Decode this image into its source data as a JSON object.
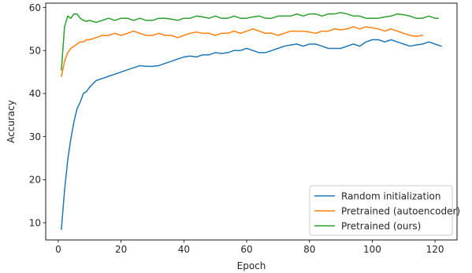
{
  "chart_data": {
    "type": "line",
    "title": "",
    "xlabel": "Epoch",
    "ylabel": "Accuracy",
    "xlim": [
      -4,
      127
    ],
    "ylim": [
      6,
      61
    ],
    "xticks": [
      0,
      20,
      40,
      60,
      80,
      100,
      120
    ],
    "yticks": [
      10,
      20,
      30,
      40,
      50,
      60
    ],
    "grid": false,
    "legend_position": "lower-right",
    "series": [
      {
        "name": "Random initialization",
        "color": "#1f77b4",
        "x": [
          1,
          2,
          3,
          4,
          5,
          6,
          7,
          8,
          9,
          10,
          12,
          14,
          16,
          18,
          20,
          22,
          24,
          26,
          28,
          30,
          32,
          34,
          36,
          38,
          40,
          42,
          44,
          46,
          48,
          50,
          52,
          54,
          56,
          58,
          60,
          62,
          64,
          66,
          68,
          70,
          72,
          74,
          76,
          78,
          80,
          82,
          84,
          86,
          88,
          90,
          92,
          94,
          96,
          98,
          100,
          102,
          104,
          106,
          108,
          110,
          112,
          114,
          116,
          118,
          120,
          122
        ],
        "y": [
          8.5,
          17.5,
          24.5,
          29.5,
          33.5,
          36.5,
          38.0,
          40.0,
          40.5,
          41.5,
          43.0,
          43.5,
          44.0,
          44.5,
          45.0,
          45.5,
          46.0,
          46.5,
          46.3,
          46.3,
          46.5,
          47.0,
          47.5,
          48.0,
          48.5,
          48.7,
          48.5,
          49.0,
          49.0,
          49.5,
          49.3,
          49.5,
          50.0,
          50.0,
          50.5,
          50.0,
          49.5,
          49.5,
          50.0,
          50.5,
          51.0,
          51.3,
          51.5,
          51.0,
          51.5,
          51.5,
          51.0,
          50.5,
          50.5,
          50.5,
          51.0,
          51.5,
          51.0,
          52.0,
          52.5,
          52.5,
          52.0,
          52.5,
          52.0,
          51.5,
          51.0,
          51.3,
          51.5,
          52.0,
          51.5,
          51.0
        ]
      },
      {
        "name": "Pretrained (autoencoder)",
        "color": "#ff7f0e",
        "x": [
          1,
          2,
          3,
          4,
          5,
          6,
          7,
          8,
          9,
          10,
          12,
          14,
          16,
          18,
          20,
          22,
          24,
          26,
          28,
          30,
          32,
          34,
          36,
          38,
          40,
          42,
          44,
          46,
          48,
          50,
          52,
          54,
          56,
          58,
          60,
          62,
          64,
          66,
          68,
          70,
          72,
          74,
          76,
          78,
          80,
          82,
          84,
          86,
          88,
          90,
          92,
          94,
          96,
          98,
          100,
          102,
          104,
          106,
          108,
          110,
          112,
          114,
          116
        ],
        "y": [
          44.0,
          47.5,
          49.5,
          50.5,
          51.0,
          51.5,
          52.0,
          52.0,
          52.5,
          52.5,
          53.0,
          53.5,
          53.5,
          54.0,
          53.5,
          54.0,
          54.5,
          54.0,
          53.5,
          53.5,
          54.0,
          53.5,
          53.5,
          53.0,
          53.5,
          54.0,
          54.3,
          54.0,
          54.0,
          53.5,
          54.0,
          54.0,
          54.5,
          54.0,
          54.5,
          55.0,
          54.5,
          54.0,
          54.0,
          53.5,
          54.0,
          54.5,
          54.5,
          54.5,
          54.3,
          54.0,
          54.5,
          54.5,
          55.0,
          54.8,
          55.0,
          55.5,
          55.0,
          55.5,
          55.3,
          55.0,
          54.5,
          55.0,
          54.5,
          54.0,
          53.5,
          53.3,
          53.5
        ]
      },
      {
        "name": "Pretrained (ours)",
        "color": "#2ca02c",
        "x": [
          1,
          2,
          3,
          4,
          5,
          6,
          7,
          8,
          9,
          10,
          12,
          14,
          16,
          18,
          20,
          22,
          24,
          26,
          28,
          30,
          32,
          34,
          36,
          38,
          40,
          42,
          44,
          46,
          48,
          50,
          52,
          54,
          56,
          58,
          60,
          62,
          64,
          66,
          68,
          70,
          72,
          74,
          76,
          78,
          80,
          82,
          84,
          86,
          88,
          90,
          92,
          94,
          96,
          98,
          100,
          102,
          104,
          106,
          108,
          110,
          112,
          114,
          116,
          118,
          120,
          121
        ],
        "y": [
          45.5,
          55.5,
          58.0,
          57.5,
          58.5,
          58.5,
          57.5,
          57.0,
          56.8,
          57.0,
          56.5,
          57.0,
          57.5,
          57.0,
          57.5,
          57.5,
          57.0,
          57.5,
          57.0,
          57.0,
          57.5,
          57.5,
          57.3,
          57.0,
          57.5,
          57.5,
          58.0,
          57.8,
          57.5,
          58.0,
          57.5,
          57.5,
          58.0,
          57.5,
          57.5,
          57.8,
          58.0,
          57.5,
          57.5,
          58.0,
          58.0,
          58.0,
          58.5,
          58.0,
          58.5,
          58.5,
          58.0,
          58.5,
          58.5,
          58.8,
          58.5,
          58.0,
          58.0,
          57.5,
          57.5,
          57.5,
          57.8,
          58.0,
          58.5,
          58.3,
          58.0,
          57.5,
          57.5,
          58.0,
          57.5,
          57.5
        ]
      }
    ]
  }
}
